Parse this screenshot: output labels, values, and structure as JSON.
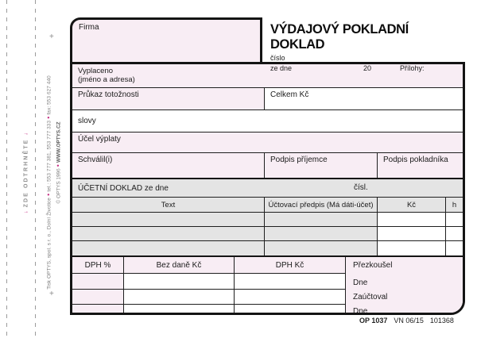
{
  "colors": {
    "pink": "#f8edf4",
    "gray": "#e4e4e4",
    "magenta": "#c62e83",
    "border": "#141414"
  },
  "tear": {
    "label": "ZDE ODTRHNĚTE",
    "arrow": "↓",
    "bullet": "●",
    "plus": "+",
    "printer": "Tisk OPTYS, spol. s r. o., Dolní Životice",
    "tel": "tel.: 553 777 381, 553 777 333",
    "fax": "fax: 553 627 440",
    "copyright": "© OPTYS 1996",
    "web": "WWW.OPTYS.CZ"
  },
  "header": {
    "firma_label": "Firma",
    "title": "VÝDAJOVÝ POKLADNÍ DOKLAD",
    "cislo_label": "číslo",
    "ze_dne_label": "ze dne",
    "year_prefix": "20",
    "prilohy_label": "Přílohy:"
  },
  "fields": {
    "vyplaceno": "Vyplaceno",
    "vyplaceno_sub": "(jméno a adresa)",
    "prukaz": "Průkaz totožnosti",
    "celkem": "Celkem Kč",
    "slovy": "slovy",
    "ucel": "Účel výplaty",
    "schvalil": "Schválil(i)",
    "podpis_prijemce": "Podpis příjemce",
    "podpis_pokladnika": "Podpis pokladníka"
  },
  "accounting": {
    "title": "ÚČETNÍ DOKLAD ze dne",
    "cisl_label": "čísl.",
    "columns": [
      "Text",
      "Účtovací předpis (Má dáti-účet)",
      "Kč",
      "h"
    ],
    "empty_rows": 3
  },
  "dph": {
    "columns": [
      "DPH %",
      "Bez daně Kč",
      "DPH Kč"
    ],
    "review": [
      "Přezkoušel",
      "Dne",
      "Zaúčtoval",
      "Dne"
    ],
    "empty_rows": 3
  },
  "footer": {
    "code": "OP 1037",
    "edition": "VN 06/15",
    "serial": "101368"
  }
}
